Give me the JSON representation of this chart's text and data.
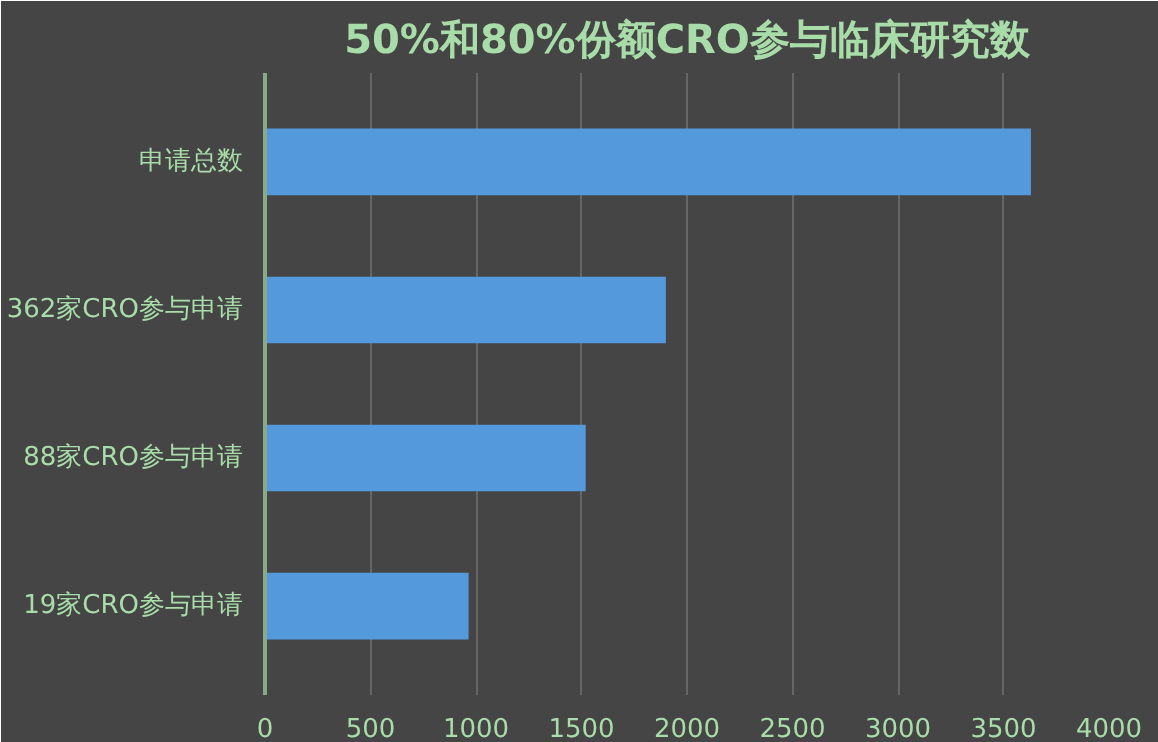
{
  "chart_data": {
    "type": "bar",
    "orientation": "horizontal",
    "title": "50%和80%份额CRO参与临床研究数",
    "categories": [
      "申请总数",
      "362家CRO参与申请",
      "88家CRO参与申请",
      "19家CRO参与申请"
    ],
    "values": [
      3630,
      1900,
      1520,
      965
    ],
    "color": "#5599dd",
    "xlim": [
      0,
      4000
    ],
    "xticks": [
      0,
      500,
      1000,
      1500,
      2000,
      2500,
      3000,
      3500,
      4000
    ],
    "grid": "x"
  }
}
